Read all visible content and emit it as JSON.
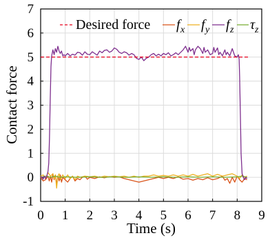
{
  "chart_data": {
    "type": "line",
    "xlabel": "Time (s)",
    "ylabel": "Contact force",
    "xlim": [
      0,
      9
    ],
    "ylim": [
      -1,
      7
    ],
    "xticks": [
      "0",
      "1",
      "2",
      "3",
      "4",
      "5",
      "6",
      "7",
      "8",
      "9"
    ],
    "yticks": [
      "-1",
      "0",
      "1",
      "2",
      "3",
      "4",
      "5",
      "6",
      "7"
    ],
    "grid": true,
    "legend_position": "top",
    "legend": [
      {
        "label": "Desired force",
        "base": "",
        "sub": ""
      },
      {
        "label": "",
        "base": "f",
        "sub": "x"
      },
      {
        "label": "",
        "base": "f",
        "sub": "y"
      },
      {
        "label": "",
        "base": "f",
        "sub": "z"
      },
      {
        "label": "",
        "base": "τ",
        "sub": "z"
      }
    ],
    "desired_force": {
      "y": 5,
      "x_range": [
        0,
        8.5
      ],
      "color": "#e8001c"
    },
    "series": [
      {
        "key": "fz",
        "color": "#7e2f8e",
        "points": [
          [
            0.0,
            0.0
          ],
          [
            0.05,
            0.02
          ],
          [
            0.1,
            -0.08
          ],
          [
            0.15,
            0.05
          ],
          [
            0.2,
            -0.05
          ],
          [
            0.25,
            0.05
          ],
          [
            0.3,
            0.25
          ],
          [
            0.33,
            0.6
          ],
          [
            0.36,
            1.6
          ],
          [
            0.39,
            3.2
          ],
          [
            0.42,
            4.6
          ],
          [
            0.45,
            5.05
          ],
          [
            0.5,
            5.3
          ],
          [
            0.55,
            5.1
          ],
          [
            0.6,
            5.35
          ],
          [
            0.65,
            5.2
          ],
          [
            0.7,
            5.45
          ],
          [
            0.75,
            5.25
          ],
          [
            0.8,
            5.15
          ],
          [
            0.85,
            5.25
          ],
          [
            0.9,
            5.05
          ],
          [
            0.95,
            5.1
          ],
          [
            1.0,
            5.05
          ],
          [
            1.1,
            5.15
          ],
          [
            1.2,
            5.05
          ],
          [
            1.3,
            5.12
          ],
          [
            1.4,
            5.08
          ],
          [
            1.5,
            5.2
          ],
          [
            1.6,
            5.18
          ],
          [
            1.7,
            5.08
          ],
          [
            1.8,
            5.22
          ],
          [
            1.9,
            5.12
          ],
          [
            2.0,
            5.1
          ],
          [
            2.1,
            5.22
          ],
          [
            2.2,
            5.15
          ],
          [
            2.3,
            5.08
          ],
          [
            2.4,
            5.25
          ],
          [
            2.5,
            5.18
          ],
          [
            2.6,
            5.28
          ],
          [
            2.7,
            5.3
          ],
          [
            2.8,
            5.2
          ],
          [
            2.9,
            5.25
          ],
          [
            3.0,
            5.38
          ],
          [
            3.1,
            5.32
          ],
          [
            3.2,
            5.2
          ],
          [
            3.3,
            5.15
          ],
          [
            3.4,
            5.22
          ],
          [
            3.5,
            5.18
          ],
          [
            3.6,
            5.08
          ],
          [
            3.7,
            5.15
          ],
          [
            3.8,
            5.1
          ],
          [
            3.9,
            4.95
          ],
          [
            4.0,
            4.9
          ],
          [
            4.1,
            5.0
          ],
          [
            4.2,
            4.85
          ],
          [
            4.3,
            4.95
          ],
          [
            4.4,
            5.0
          ],
          [
            4.5,
            5.1
          ],
          [
            4.6,
            5.15
          ],
          [
            4.7,
            5.05
          ],
          [
            4.8,
            5.12
          ],
          [
            4.9,
            5.05
          ],
          [
            5.0,
            5.15
          ],
          [
            5.1,
            5.1
          ],
          [
            5.2,
            5.18
          ],
          [
            5.3,
            5.05
          ],
          [
            5.4,
            5.1
          ],
          [
            5.5,
            5.18
          ],
          [
            5.6,
            5.1
          ],
          [
            5.7,
            5.2
          ],
          [
            5.8,
            5.3
          ],
          [
            5.9,
            5.45
          ],
          [
            6.0,
            5.2
          ],
          [
            6.05,
            5.4
          ],
          [
            6.1,
            5.25
          ],
          [
            6.2,
            5.35
          ],
          [
            6.25,
            5.1
          ],
          [
            6.3,
            5.3
          ],
          [
            6.4,
            5.45
          ],
          [
            6.5,
            5.35
          ],
          [
            6.6,
            5.15
          ],
          [
            6.65,
            5.4
          ],
          [
            6.7,
            5.2
          ],
          [
            6.8,
            5.3
          ],
          [
            6.9,
            5.1
          ],
          [
            7.0,
            5.15
          ],
          [
            7.05,
            5.4
          ],
          [
            7.1,
            5.2
          ],
          [
            7.2,
            5.38
          ],
          [
            7.25,
            5.1
          ],
          [
            7.3,
            5.2
          ],
          [
            7.4,
            5.05
          ],
          [
            7.5,
            5.3
          ],
          [
            7.55,
            5.1
          ],
          [
            7.6,
            5.2
          ],
          [
            7.7,
            5.05
          ],
          [
            7.8,
            5.35
          ],
          [
            7.9,
            5.05
          ],
          [
            8.0,
            5.0
          ],
          [
            8.05,
            5.1
          ],
          [
            8.08,
            4.9
          ],
          [
            8.1,
            4.2
          ],
          [
            8.13,
            2.6
          ],
          [
            8.16,
            1.0
          ],
          [
            8.2,
            0.15
          ],
          [
            8.25,
            0.0
          ],
          [
            8.3,
            -0.1
          ],
          [
            8.35,
            0.0
          ],
          [
            8.4,
            -0.05
          ]
        ]
      },
      {
        "key": "fx",
        "color": "#d95319",
        "points": [
          [
            0.0,
            0.0
          ],
          [
            0.1,
            -0.15
          ],
          [
            0.2,
            -0.1
          ],
          [
            0.3,
            0.05
          ],
          [
            0.35,
            -0.15
          ],
          [
            0.4,
            0.05
          ],
          [
            0.45,
            -0.2
          ],
          [
            0.5,
            0.15
          ],
          [
            0.55,
            -0.1
          ],
          [
            0.6,
            0.1
          ],
          [
            0.65,
            -0.3
          ],
          [
            0.7,
            0.05
          ],
          [
            0.75,
            -0.15
          ],
          [
            0.8,
            0.1
          ],
          [
            0.85,
            -0.2
          ],
          [
            0.9,
            0.0
          ],
          [
            1.0,
            -0.1
          ],
          [
            1.1,
            -0.2
          ],
          [
            1.2,
            -0.05
          ],
          [
            1.3,
            0.05
          ],
          [
            1.4,
            -0.15
          ],
          [
            1.5,
            -0.05
          ],
          [
            1.6,
            -0.1
          ],
          [
            1.7,
            0.0
          ],
          [
            1.8,
            0.05
          ],
          [
            1.9,
            -0.08
          ],
          [
            2.0,
            0.0
          ],
          [
            2.2,
            -0.05
          ],
          [
            2.4,
            0.02
          ],
          [
            2.6,
            -0.02
          ],
          [
            2.8,
            0.03
          ],
          [
            3.0,
            0.0
          ],
          [
            3.2,
            0.02
          ],
          [
            3.4,
            -0.05
          ],
          [
            3.6,
            -0.1
          ],
          [
            3.8,
            -0.15
          ],
          [
            4.0,
            -0.2
          ],
          [
            4.2,
            -0.15
          ],
          [
            4.4,
            -0.1
          ],
          [
            4.6,
            -0.05
          ],
          [
            4.8,
            0.0
          ],
          [
            5.0,
            -0.05
          ],
          [
            5.2,
            0.0
          ],
          [
            5.4,
            -0.05
          ],
          [
            5.6,
            0.02
          ],
          [
            5.8,
            -0.08
          ],
          [
            6.0,
            -0.05
          ],
          [
            6.2,
            -0.12
          ],
          [
            6.4,
            -0.05
          ],
          [
            6.6,
            -0.1
          ],
          [
            6.8,
            -0.02
          ],
          [
            7.0,
            -0.1
          ],
          [
            7.2,
            -0.05
          ],
          [
            7.4,
            0.05
          ],
          [
            7.5,
            -0.12
          ],
          [
            7.6,
            -0.05
          ],
          [
            7.7,
            -0.25
          ],
          [
            7.8,
            0.0
          ],
          [
            7.9,
            -0.2
          ],
          [
            8.0,
            0.05
          ],
          [
            8.1,
            -0.1
          ],
          [
            8.2,
            -0.2
          ],
          [
            8.3,
            -0.05
          ],
          [
            8.4,
            -0.1
          ]
        ]
      },
      {
        "key": "fy",
        "color": "#edb120",
        "points": [
          [
            0.0,
            0.05
          ],
          [
            0.1,
            0.1
          ],
          [
            0.2,
            -0.05
          ],
          [
            0.3,
            0.2
          ],
          [
            0.4,
            0.05
          ],
          [
            0.5,
            0.15
          ],
          [
            0.55,
            -0.05
          ],
          [
            0.6,
            0.1
          ],
          [
            0.65,
            -0.45
          ],
          [
            0.7,
            0.05
          ],
          [
            0.75,
            0.15
          ],
          [
            0.8,
            -0.1
          ],
          [
            0.9,
            0.1
          ],
          [
            1.0,
            -0.05
          ],
          [
            1.1,
            0.1
          ],
          [
            1.2,
            -0.05
          ],
          [
            1.3,
            0.05
          ],
          [
            1.4,
            -0.1
          ],
          [
            1.5,
            0.05
          ],
          [
            1.6,
            0.0
          ],
          [
            1.8,
            0.05
          ],
          [
            2.0,
            0.02
          ],
          [
            2.2,
            0.05
          ],
          [
            2.4,
            0.0
          ],
          [
            2.6,
            0.05
          ],
          [
            2.8,
            0.02
          ],
          [
            3.0,
            0.05
          ],
          [
            3.2,
            0.02
          ],
          [
            3.4,
            0.05
          ],
          [
            3.6,
            0.0
          ],
          [
            3.8,
            0.05
          ],
          [
            4.0,
            0.0
          ],
          [
            4.2,
            0.05
          ],
          [
            4.4,
            0.05
          ],
          [
            4.6,
            0.1
          ],
          [
            4.8,
            0.05
          ],
          [
            5.0,
            0.08
          ],
          [
            5.2,
            0.05
          ],
          [
            5.4,
            0.1
          ],
          [
            5.6,
            0.05
          ],
          [
            5.8,
            0.1
          ],
          [
            6.0,
            0.05
          ],
          [
            6.2,
            0.12
          ],
          [
            6.4,
            0.05
          ],
          [
            6.6,
            0.1
          ],
          [
            6.8,
            0.15
          ],
          [
            7.0,
            0.05
          ],
          [
            7.2,
            0.12
          ],
          [
            7.4,
            0.05
          ],
          [
            7.6,
            0.1
          ],
          [
            7.8,
            0.15
          ],
          [
            8.0,
            0.05
          ],
          [
            8.1,
            -0.05
          ],
          [
            8.2,
            0.1
          ],
          [
            8.3,
            0.0
          ],
          [
            8.4,
            0.05
          ]
        ]
      },
      {
        "key": "tz",
        "color": "#77ac30",
        "points": [
          [
            0.0,
            0.0
          ],
          [
            0.2,
            0.05
          ],
          [
            0.4,
            0.0
          ],
          [
            0.6,
            0.05
          ],
          [
            0.8,
            0.0
          ],
          [
            1.0,
            0.02
          ],
          [
            1.5,
            0.0
          ],
          [
            2.0,
            0.02
          ],
          [
            2.5,
            0.0
          ],
          [
            3.0,
            0.02
          ],
          [
            3.5,
            0.0
          ],
          [
            4.0,
            0.02
          ],
          [
            4.5,
            0.0
          ],
          [
            5.0,
            0.02
          ],
          [
            5.5,
            0.0
          ],
          [
            6.0,
            0.02
          ],
          [
            6.5,
            0.0
          ],
          [
            7.0,
            0.02
          ],
          [
            7.5,
            0.0
          ],
          [
            8.0,
            0.02
          ],
          [
            8.2,
            0.05
          ],
          [
            8.4,
            0.0
          ]
        ]
      }
    ]
  }
}
